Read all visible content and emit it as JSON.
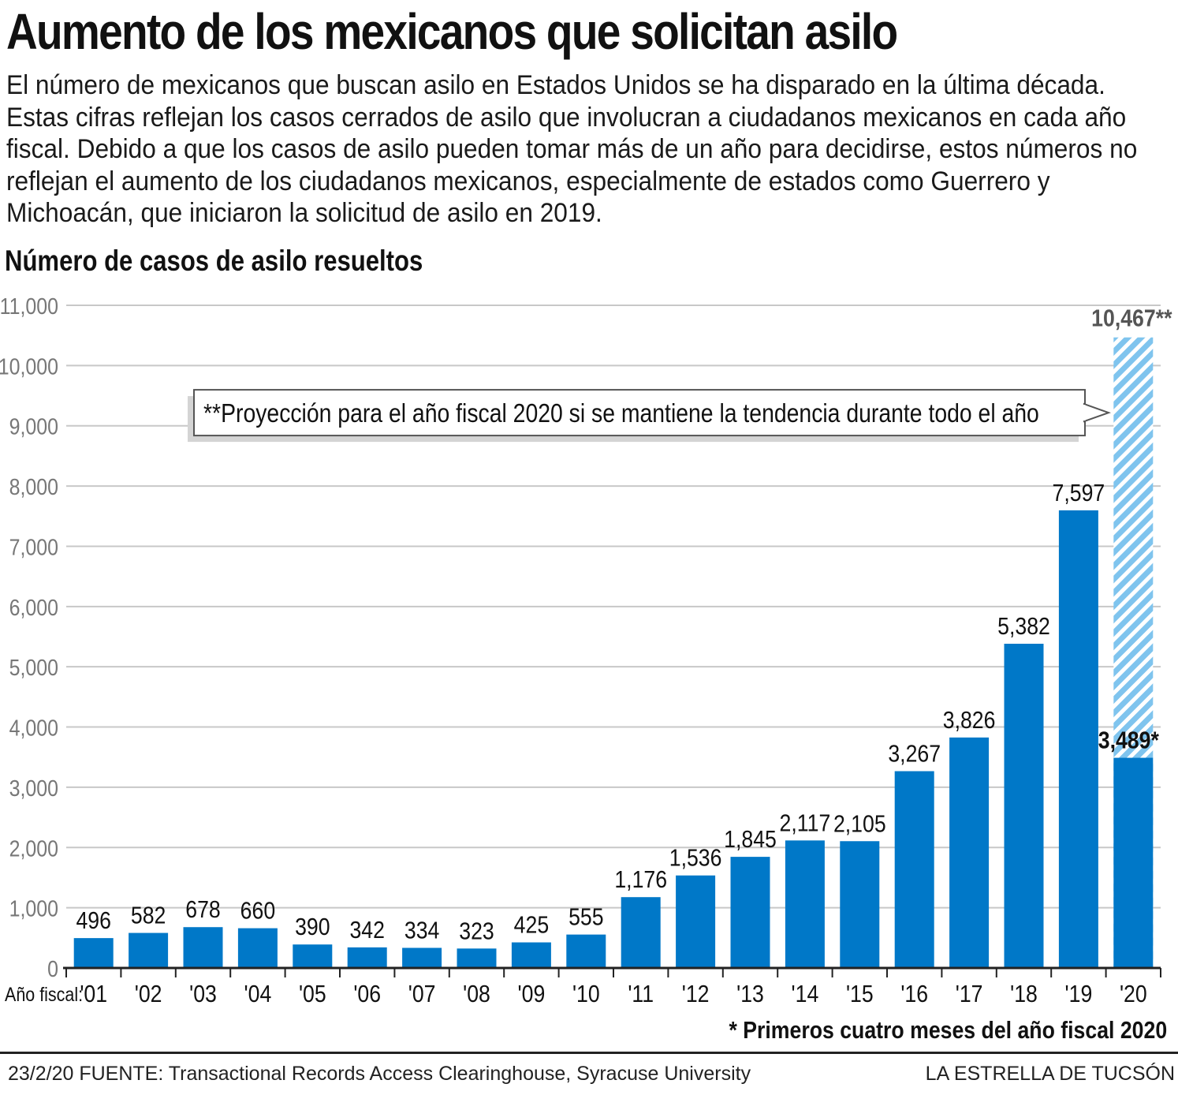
{
  "header": {
    "title": "Aumento de los mexicanos que solicitan asilo",
    "intro": "El número de mexicanos que buscan asilo en Estados Unidos se ha disparado en la última década. Estas cifras reflejan los casos cerrados de asilo que involucran a ciudadanos mexicanos en cada año fiscal. Debido a que los casos de asilo pueden tomar más de un año para decidirse, estos números no reflejan el aumento de los ciudadanos mexicanos, especialmente de estados como Guerrero y Michoacán, que iniciaron la solicitud de asilo en 2019.",
    "subtitle": "Número de casos de asilo resueltos"
  },
  "chart_data": {
    "type": "bar",
    "title": "Número de casos de asilo resueltos",
    "xlabel": "Año fiscal:",
    "ylabel": "",
    "ylim": [
      0,
      11000
    ],
    "yticks": [
      0,
      1000,
      2000,
      3000,
      4000,
      5000,
      6000,
      7000,
      8000,
      9000,
      10000,
      11000
    ],
    "ytick_labels": [
      "0",
      "1,000",
      "2,000",
      "3,000",
      "4,000",
      "5,000",
      "6,000",
      "7,000",
      "8,000",
      "9,000",
      "10,000",
      "11,000"
    ],
    "grid": true,
    "categories": [
      "'01",
      "'02",
      "'03",
      "'04",
      "'05",
      "'06",
      "'07",
      "'08",
      "'09",
      "'10",
      "'11",
      "'12",
      "'13",
      "'14",
      "'15",
      "'16",
      "'17",
      "'18",
      "'19",
      "'20"
    ],
    "values": [
      496,
      582,
      678,
      660,
      390,
      342,
      334,
      323,
      425,
      555,
      1176,
      1536,
      1845,
      2117,
      2105,
      3267,
      3826,
      5382,
      7597,
      3489
    ],
    "value_labels": [
      "496",
      "582",
      "678",
      "660",
      "390",
      "342",
      "334",
      "323",
      "425",
      "555",
      "1,176",
      "1,536",
      "1,845",
      "2,117",
      "2,105",
      "3,267",
      "3,826",
      "5,382",
      "7,597",
      "3,489*"
    ],
    "projection": {
      "category": "'20",
      "value": 10467,
      "label": "10,467**"
    },
    "annotation": "**Proyección para el año fiscal 2020 si se mantiene la tendencia durante todo el año",
    "colors": {
      "bar": "#0078c8",
      "projection": "#8ecbef",
      "grid": "#c8c8c8",
      "axis": "#222222"
    }
  },
  "footnote": "* Primeros cuatro meses del año fiscal 2020",
  "footer": {
    "source": "23/2/20  FUENTE: Transactional Records Access Clearinghouse, Syracuse University",
    "brand": "LA ESTRELLA DE TUCSÓN"
  }
}
